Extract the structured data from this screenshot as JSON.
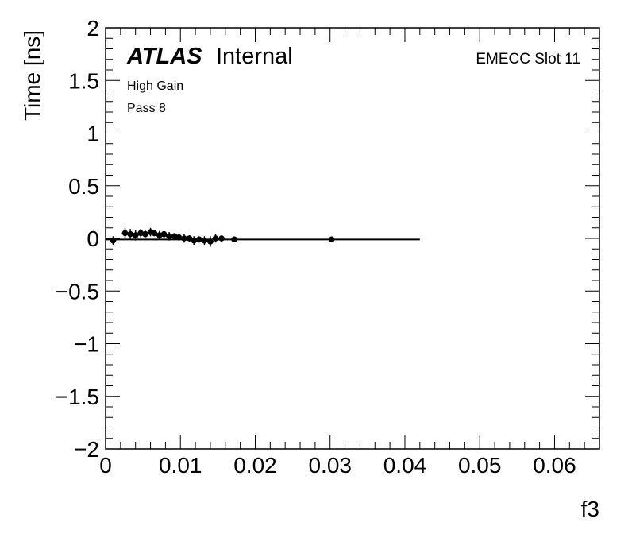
{
  "chart_data": {
    "type": "scatter",
    "xlabel": "f3",
    "ylabel": "Time [ns]",
    "xlim": [
      0,
      0.066
    ],
    "ylim": [
      -2,
      2
    ],
    "x_ticks": [
      0,
      0.01,
      0.02,
      0.03,
      0.04,
      0.05,
      0.06
    ],
    "x_tick_labels": [
      "0",
      "0.01",
      "0.02",
      "0.03",
      "0.04",
      "0.05",
      "0.06"
    ],
    "y_ticks": [
      -2,
      -1.5,
      -1,
      -0.5,
      0,
      0.5,
      1,
      1.5,
      2
    ],
    "y_tick_labels": [
      "−2",
      "−1.5",
      "−1",
      "−0.5",
      "0",
      "0.5",
      "1",
      "1.5",
      "2"
    ],
    "grid": false,
    "annotations": {
      "atlas_bold": "ATLAS",
      "atlas_rest": "Internal",
      "gain": "High Gain",
      "pass": "Pass 8",
      "slot": "EMECC Slot 11"
    },
    "fit_line": {
      "x": [
        0,
        0.042
      ],
      "y": [
        -0.01,
        -0.01
      ]
    },
    "points": [
      {
        "x": 0.001,
        "y": -0.02,
        "err": 0.04
      },
      {
        "x": 0.0026,
        "y": 0.05,
        "err": 0.05
      },
      {
        "x": 0.0033,
        "y": 0.04,
        "err": 0.05
      },
      {
        "x": 0.004,
        "y": 0.03,
        "err": 0.05
      },
      {
        "x": 0.0047,
        "y": 0.05,
        "err": 0.04
      },
      {
        "x": 0.0053,
        "y": 0.04,
        "err": 0.04
      },
      {
        "x": 0.006,
        "y": 0.06,
        "err": 0.04
      },
      {
        "x": 0.0065,
        "y": 0.05,
        "err": 0.03
      },
      {
        "x": 0.0072,
        "y": 0.03,
        "err": 0.04
      },
      {
        "x": 0.0078,
        "y": 0.04,
        "err": 0.03
      },
      {
        "x": 0.0085,
        "y": 0.02,
        "err": 0.04
      },
      {
        "x": 0.0092,
        "y": 0.02,
        "err": 0.03
      },
      {
        "x": 0.0098,
        "y": 0.01,
        "err": 0.03
      },
      {
        "x": 0.0105,
        "y": 0.0,
        "err": 0.04
      },
      {
        "x": 0.0112,
        "y": 0.0,
        "err": 0.03
      },
      {
        "x": 0.0118,
        "y": -0.02,
        "err": 0.04
      },
      {
        "x": 0.0125,
        "y": -0.01,
        "err": 0.03
      },
      {
        "x": 0.0132,
        "y": -0.02,
        "err": 0.04
      },
      {
        "x": 0.014,
        "y": -0.03,
        "err": 0.05
      },
      {
        "x": 0.0147,
        "y": 0.0,
        "err": 0.04
      },
      {
        "x": 0.0155,
        "y": 0.0,
        "err": 0.03
      },
      {
        "x": 0.0172,
        "y": -0.01,
        "err": 0.02
      },
      {
        "x": 0.0302,
        "y": -0.01,
        "err": 0.02
      }
    ]
  }
}
